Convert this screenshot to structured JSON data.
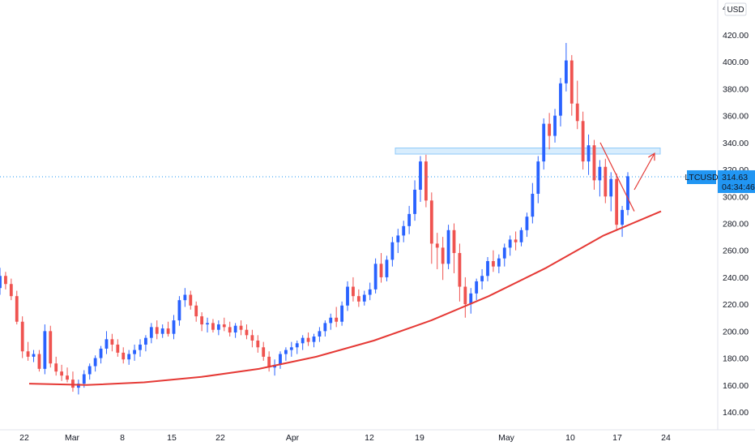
{
  "chart_data": {
    "type": "candlestick",
    "symbol": "LTCUSD",
    "currency": "USD",
    "last_price": "314.63",
    "countdown": "04:34:46",
    "top_tick_partial": "44",
    "y_ticks": [
      140,
      160,
      180,
      200,
      220,
      240,
      260,
      280,
      300,
      320,
      340,
      360,
      380,
      400,
      420
    ],
    "y_tick_labels": [
      "140.00",
      "160.00",
      "180.00",
      "200.00",
      "220.00",
      "240.00",
      "260.00",
      "280.00",
      "300.00",
      "320.00",
      "340.00",
      "360.00",
      "380.00",
      "400.00",
      "420.00"
    ],
    "x_tick_labels": [
      "22",
      "Mar",
      "8",
      "15",
      "22",
      "Apr",
      "12",
      "19",
      "May",
      "10",
      "17",
      "24"
    ],
    "ylim": [
      130,
      440
    ],
    "grid": false,
    "bullish_color": "#2962ff",
    "bearish_color": "#ef5350",
    "trendline_color": "#e53935",
    "zone_color": "#90caf9",
    "price_tag_color": "#2196f3",
    "candles": [
      [
        232,
        247,
        227,
        241
      ],
      [
        241,
        244,
        231,
        235
      ],
      [
        235,
        239,
        223,
        226
      ],
      [
        226,
        230,
        205,
        207
      ],
      [
        207,
        211,
        180,
        185
      ],
      [
        185,
        192,
        178,
        181
      ],
      [
        181,
        186,
        177,
        183
      ],
      [
        183,
        186,
        170,
        172
      ],
      [
        172,
        205,
        168,
        200
      ],
      [
        200,
        204,
        173,
        176
      ],
      [
        176,
        181,
        167,
        170
      ],
      [
        170,
        175,
        163,
        167
      ],
      [
        167,
        173,
        162,
        164
      ],
      [
        164,
        170,
        155,
        158
      ],
      [
        158,
        164,
        153,
        161
      ],
      [
        161,
        171,
        158,
        168
      ],
      [
        168,
        176,
        164,
        174
      ],
      [
        174,
        182,
        170,
        180
      ],
      [
        180,
        189,
        176,
        187
      ],
      [
        187,
        200,
        183,
        194
      ],
      [
        194,
        198,
        185,
        190
      ],
      [
        190,
        194,
        181,
        184
      ],
      [
        184,
        188,
        176,
        179
      ],
      [
        179,
        186,
        175,
        183
      ],
      [
        183,
        190,
        178,
        186
      ],
      [
        186,
        194,
        181,
        190
      ],
      [
        190,
        197,
        185,
        195
      ],
      [
        195,
        206,
        191,
        203
      ],
      [
        203,
        208,
        194,
        198
      ],
      [
        198,
        205,
        195,
        202
      ],
      [
        202,
        207,
        196,
        198
      ],
      [
        198,
        212,
        194,
        208
      ],
      [
        208,
        226,
        204,
        223
      ],
      [
        223,
        232,
        218,
        227
      ],
      [
        227,
        230,
        216,
        219
      ],
      [
        219,
        222,
        207,
        211
      ],
      [
        211,
        214,
        200,
        205
      ],
      [
        205,
        210,
        199,
        206
      ],
      [
        206,
        209,
        199,
        201
      ],
      [
        201,
        208,
        197,
        205
      ],
      [
        205,
        210,
        200,
        203
      ],
      [
        203,
        207,
        196,
        199
      ],
      [
        199,
        206,
        195,
        204
      ],
      [
        204,
        208,
        197,
        201
      ],
      [
        201,
        205,
        194,
        197
      ],
      [
        197,
        201,
        188,
        193
      ],
      [
        193,
        197,
        184,
        188
      ],
      [
        188,
        192,
        178,
        181
      ],
      [
        181,
        185,
        170,
        173
      ],
      [
        173,
        179,
        167,
        175
      ],
      [
        175,
        185,
        172,
        183
      ],
      [
        183,
        188,
        178,
        186
      ],
      [
        186,
        192,
        181,
        188
      ],
      [
        188,
        193,
        183,
        191
      ],
      [
        191,
        197,
        186,
        195
      ],
      [
        195,
        199,
        189,
        192
      ],
      [
        192,
        198,
        188,
        196
      ],
      [
        196,
        203,
        192,
        200
      ],
      [
        200,
        208,
        196,
        206
      ],
      [
        206,
        213,
        201,
        210
      ],
      [
        210,
        218,
        203,
        207
      ],
      [
        207,
        222,
        204,
        219
      ],
      [
        219,
        237,
        215,
        233
      ],
      [
        233,
        240,
        222,
        226
      ],
      [
        226,
        231,
        218,
        222
      ],
      [
        222,
        230,
        219,
        227
      ],
      [
        227,
        236,
        223,
        231
      ],
      [
        231,
        254,
        228,
        250
      ],
      [
        250,
        258,
        236,
        240
      ],
      [
        240,
        256,
        237,
        253
      ],
      [
        253,
        270,
        248,
        266
      ],
      [
        266,
        276,
        258,
        271
      ],
      [
        271,
        282,
        266,
        278
      ],
      [
        278,
        293,
        272,
        287
      ],
      [
        287,
        312,
        282,
        305
      ],
      [
        305,
        330,
        296,
        326
      ],
      [
        326,
        331,
        292,
        297
      ],
      [
        297,
        303,
        250,
        265
      ],
      [
        265,
        273,
        246,
        262
      ],
      [
        262,
        270,
        238,
        250
      ],
      [
        250,
        279,
        246,
        275
      ],
      [
        275,
        280,
        243,
        258
      ],
      [
        258,
        265,
        222,
        233
      ],
      [
        233,
        240,
        210,
        220
      ],
      [
        220,
        232,
        213,
        228
      ],
      [
        228,
        239,
        223,
        237
      ],
      [
        237,
        246,
        231,
        241
      ],
      [
        241,
        255,
        237,
        252
      ],
      [
        252,
        260,
        244,
        248
      ],
      [
        248,
        257,
        243,
        254
      ],
      [
        254,
        265,
        248,
        262
      ],
      [
        262,
        271,
        256,
        268
      ],
      [
        268,
        274,
        260,
        266
      ],
      [
        266,
        277,
        263,
        275
      ],
      [
        275,
        288,
        270,
        285
      ],
      [
        285,
        310,
        280,
        302
      ],
      [
        302,
        330,
        295,
        326
      ],
      [
        326,
        358,
        320,
        354
      ],
      [
        354,
        362,
        335,
        345
      ],
      [
        345,
        365,
        340,
        360
      ],
      [
        360,
        388,
        352,
        384
      ],
      [
        384,
        414,
        378,
        401
      ],
      [
        401,
        405,
        360,
        369
      ],
      [
        369,
        386,
        350,
        356
      ],
      [
        356,
        363,
        320,
        326
      ],
      [
        326,
        346,
        316,
        338
      ],
      [
        338,
        342,
        305,
        312
      ],
      [
        312,
        327,
        300,
        322
      ],
      [
        322,
        328,
        295,
        300
      ],
      [
        300,
        318,
        289,
        313
      ],
      [
        313,
        317,
        275,
        279
      ],
      [
        279,
        293,
        270,
        290
      ],
      [
        290,
        318,
        286,
        315
      ]
    ],
    "annotations": {
      "resistance_zone": {
        "price_low": 331.5,
        "price_high": 336
      },
      "support_curve_prices": [
        161,
        160,
        162,
        166,
        172,
        181,
        193,
        208,
        226,
        247,
        271,
        289
      ],
      "falling_trendline": {
        "from_price": 340,
        "to_price": 289
      },
      "arrow_from_price": 305,
      "arrow_to_price": 332
    }
  }
}
